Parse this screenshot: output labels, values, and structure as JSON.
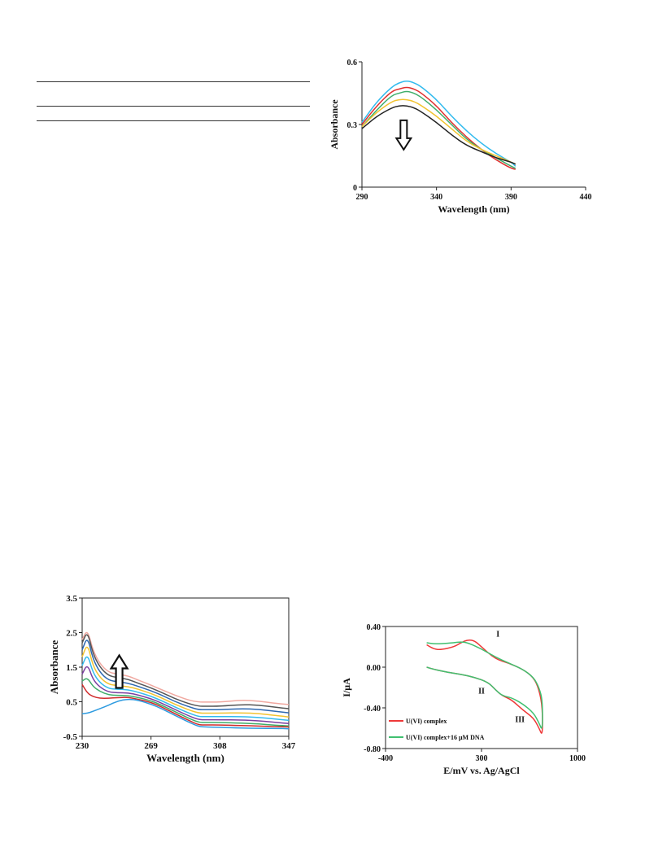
{
  "chart_data": [
    {
      "type": "line",
      "xlabel": "Wavelength (nm)",
      "ylabel": "Absorbance",
      "xlim": [
        290,
        440
      ],
      "ylim": [
        0,
        0.6
      ],
      "xticks": [
        "290",
        "340",
        "390",
        "440"
      ],
      "yticks": [
        "0",
        "0.3",
        "0.6"
      ],
      "annotation": "down-arrow",
      "series": [
        {
          "color": "#33bbee",
          "x": [
            290,
            300,
            310,
            315,
            320,
            325,
            330,
            340,
            350,
            360,
            370,
            380,
            390,
            393
          ],
          "y": [
            0.31,
            0.41,
            0.48,
            0.5,
            0.51,
            0.5,
            0.48,
            0.42,
            0.34,
            0.27,
            0.21,
            0.16,
            0.12,
            0.1
          ]
        },
        {
          "color": "#e03030",
          "x": [
            290,
            300,
            310,
            315,
            320,
            325,
            330,
            340,
            350,
            360,
            370,
            380,
            390,
            393
          ],
          "y": [
            0.3,
            0.39,
            0.46,
            0.47,
            0.48,
            0.47,
            0.45,
            0.39,
            0.31,
            0.24,
            0.18,
            0.13,
            0.09,
            0.085
          ]
        },
        {
          "color": "#3fae6a",
          "x": [
            290,
            300,
            310,
            315,
            320,
            325,
            330,
            340,
            350,
            360,
            370,
            380,
            390,
            393
          ],
          "y": [
            0.29,
            0.37,
            0.44,
            0.45,
            0.46,
            0.45,
            0.43,
            0.37,
            0.3,
            0.23,
            0.18,
            0.14,
            0.1,
            0.09
          ]
        },
        {
          "color": "#f2c330",
          "x": [
            290,
            300,
            310,
            315,
            320,
            325,
            330,
            340,
            350,
            360,
            370,
            380,
            390,
            393
          ],
          "y": [
            0.29,
            0.36,
            0.41,
            0.42,
            0.42,
            0.41,
            0.39,
            0.34,
            0.28,
            0.22,
            0.18,
            0.15,
            0.12,
            0.11
          ]
        },
        {
          "color": "#222222",
          "x": [
            290,
            300,
            310,
            315,
            320,
            325,
            330,
            340,
            350,
            360,
            370,
            380,
            390,
            393
          ],
          "y": [
            0.28,
            0.34,
            0.38,
            0.39,
            0.39,
            0.38,
            0.36,
            0.31,
            0.25,
            0.2,
            0.17,
            0.14,
            0.12,
            0.11
          ]
        }
      ]
    },
    {
      "type": "line",
      "xlabel": "Wavelength (nm)",
      "ylabel": "Absorbance",
      "xlim": [
        230,
        347
      ],
      "ylim": [
        -0.5,
        3.5
      ],
      "xticks": [
        "230",
        "269",
        "308",
        "347"
      ],
      "yticks": [
        "-0.5",
        "0.5",
        "1.5",
        "2.5",
        "3.5"
      ],
      "annotation": "up-arrow",
      "series": [
        {
          "color": "#f0a8a0",
          "x": [
            230,
            233,
            236,
            240,
            245,
            250,
            256,
            262,
            269,
            275,
            282,
            290,
            296,
            300,
            308,
            320,
            330,
            340,
            347
          ],
          "y": [
            2.3,
            2.6,
            2.0,
            1.6,
            1.35,
            1.3,
            1.25,
            1.12,
            0.98,
            0.85,
            0.7,
            0.55,
            0.49,
            0.49,
            0.49,
            0.55,
            0.52,
            0.45,
            0.42
          ]
        },
        {
          "color": "#555555",
          "x": [
            230,
            233,
            236,
            240,
            245,
            250,
            256,
            262,
            269,
            275,
            282,
            290,
            296,
            300,
            308,
            320,
            330,
            340,
            347
          ],
          "y": [
            2.2,
            2.55,
            1.9,
            1.5,
            1.25,
            1.2,
            1.15,
            1.03,
            0.9,
            0.77,
            0.6,
            0.45,
            0.37,
            0.37,
            0.37,
            0.42,
            0.4,
            0.34,
            0.3
          ]
        },
        {
          "color": "#2e68b0",
          "x": [
            230,
            233,
            236,
            240,
            245,
            250,
            256,
            262,
            269,
            275,
            282,
            290,
            296,
            300,
            308,
            320,
            330,
            340,
            347
          ],
          "y": [
            2.0,
            2.4,
            1.75,
            1.35,
            1.12,
            1.08,
            1.04,
            0.94,
            0.82,
            0.69,
            0.52,
            0.36,
            0.27,
            0.27,
            0.27,
            0.3,
            0.28,
            0.22,
            0.18
          ]
        },
        {
          "color": "#f2c330",
          "x": [
            230,
            233,
            236,
            240,
            245,
            250,
            256,
            262,
            269,
            275,
            282,
            290,
            296,
            300,
            308,
            320,
            330,
            340,
            347
          ],
          "y": [
            1.8,
            2.2,
            1.55,
            1.2,
            1.0,
            0.97,
            0.94,
            0.86,
            0.74,
            0.61,
            0.44,
            0.27,
            0.17,
            0.17,
            0.17,
            0.18,
            0.16,
            0.1,
            0.06
          ]
        },
        {
          "color": "#33bbee",
          "x": [
            230,
            233,
            236,
            240,
            245,
            250,
            256,
            262,
            269,
            275,
            282,
            290,
            296,
            300,
            308,
            320,
            330,
            340,
            347
          ],
          "y": [
            1.55,
            1.9,
            1.35,
            1.05,
            0.88,
            0.86,
            0.85,
            0.77,
            0.66,
            0.53,
            0.36,
            0.18,
            0.07,
            0.07,
            0.07,
            0.07,
            0.05,
            0.0,
            -0.04
          ]
        },
        {
          "color": "#7b3fa0",
          "x": [
            230,
            233,
            236,
            240,
            245,
            250,
            256,
            262,
            269,
            275,
            282,
            290,
            296,
            300,
            308,
            320,
            330,
            340,
            347
          ],
          "y": [
            1.3,
            1.6,
            1.15,
            0.92,
            0.78,
            0.76,
            0.76,
            0.69,
            0.59,
            0.46,
            0.29,
            0.1,
            -0.02,
            -0.02,
            -0.02,
            -0.03,
            -0.05,
            -0.1,
            -0.13
          ]
        },
        {
          "color": "#3fae6a",
          "x": [
            230,
            233,
            236,
            240,
            245,
            250,
            256,
            262,
            269,
            275,
            282,
            290,
            296,
            300,
            308,
            320,
            330,
            340,
            347
          ],
          "y": [
            1.1,
            1.2,
            0.95,
            0.8,
            0.7,
            0.68,
            0.68,
            0.62,
            0.53,
            0.4,
            0.23,
            0.03,
            -0.1,
            -0.1,
            -0.1,
            -0.12,
            -0.14,
            -0.18,
            -0.2
          ]
        },
        {
          "color": "#d02c2c",
          "x": [
            230,
            233,
            236,
            240,
            245,
            250,
            256,
            262,
            269,
            275,
            282,
            290,
            296,
            300,
            308,
            320,
            330,
            340,
            347
          ],
          "y": [
            1.0,
            0.75,
            0.65,
            0.6,
            0.6,
            0.62,
            0.63,
            0.57,
            0.48,
            0.35,
            0.17,
            -0.03,
            -0.17,
            -0.17,
            -0.17,
            -0.19,
            -0.2,
            -0.22,
            -0.23
          ]
        },
        {
          "color": "#2e9be0",
          "x": [
            230,
            233,
            236,
            240,
            245,
            250,
            256,
            262,
            269,
            275,
            282,
            290,
            296,
            300,
            308,
            320,
            330,
            340,
            347
          ],
          "y": [
            0.15,
            0.17,
            0.22,
            0.3,
            0.4,
            0.52,
            0.58,
            0.54,
            0.43,
            0.3,
            0.12,
            -0.08,
            -0.22,
            -0.23,
            -0.24,
            -0.26,
            -0.27,
            -0.27,
            -0.28
          ]
        }
      ]
    },
    {
      "type": "line",
      "xlabel": "E/mV vs. Ag/AgCl",
      "ylabel": "I/μA",
      "xlim": [
        -400,
        1000
      ],
      "ylim": [
        -0.8,
        0.4
      ],
      "xticks": [
        "-400",
        "300",
        "1000"
      ],
      "yticks": [
        "0.40",
        "0.00",
        "-0.40",
        "-0.80"
      ],
      "annotations": [
        {
          "text": "I",
          "x": 420,
          "y": 0.3
        },
        {
          "text": "II",
          "x": 300,
          "y": -0.26
        },
        {
          "text": "III",
          "x": 580,
          "y": -0.54
        }
      ],
      "legend": "bottom-left",
      "series": [
        {
          "name": "U(VI) complex",
          "color": "#ee3838",
          "x": [
            -100,
            -50,
            0,
            100,
            150,
            200,
            250,
            300,
            400,
            500,
            600,
            680,
            720,
            745,
            745,
            720,
            680,
            600,
            520,
            450,
            400,
            350,
            250,
            150,
            50,
            -50,
            -100
          ],
          "y": [
            0.22,
            0.18,
            0.17,
            0.2,
            0.24,
            0.27,
            0.26,
            0.2,
            0.08,
            0.04,
            -0.02,
            -0.1,
            -0.22,
            -0.4,
            -0.68,
            -0.6,
            -0.5,
            -0.42,
            -0.32,
            -0.28,
            -0.22,
            -0.15,
            -0.1,
            -0.07,
            -0.05,
            -0.02,
            0.0
          ]
        },
        {
          "name": "U(VI) complex+16 μM DNA",
          "color": "#40c070",
          "x": [
            -100,
            -50,
            0,
            100,
            150,
            200,
            300,
            400,
            500,
            600,
            680,
            720,
            745,
            745,
            720,
            680,
            600,
            520,
            450,
            400,
            350,
            250,
            150,
            50,
            -50,
            -100
          ],
          "y": [
            0.24,
            0.23,
            0.23,
            0.24,
            0.25,
            0.24,
            0.18,
            0.1,
            0.04,
            -0.02,
            -0.1,
            -0.2,
            -0.33,
            -0.63,
            -0.55,
            -0.45,
            -0.36,
            -0.3,
            -0.28,
            -0.22,
            -0.15,
            -0.1,
            -0.07,
            -0.05,
            -0.02,
            0.0
          ]
        }
      ]
    }
  ]
}
